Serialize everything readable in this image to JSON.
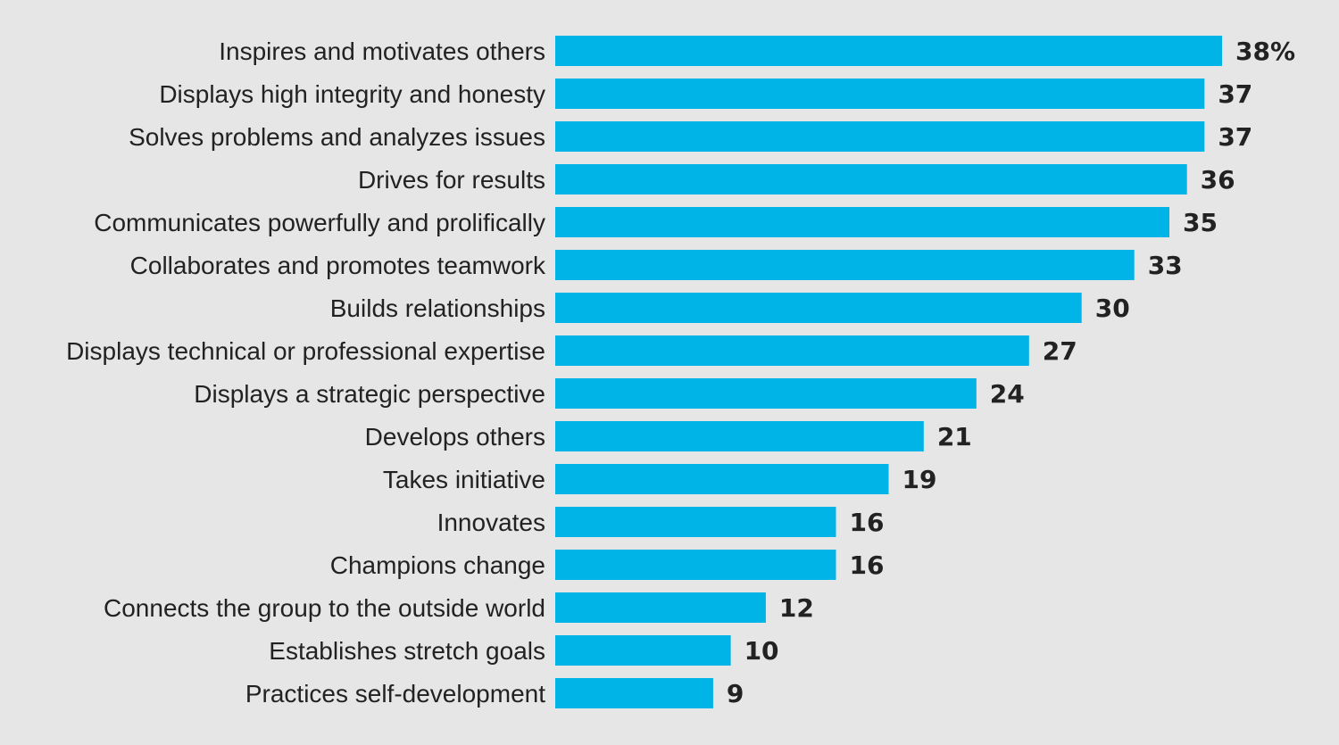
{
  "colors": {
    "background": "#e6e6e6",
    "bar": "#00b4e8",
    "text": "#222222"
  },
  "chart_data": {
    "type": "bar",
    "orientation": "horizontal",
    "title": "",
    "xlabel": "",
    "ylabel": "",
    "xlim": [
      0,
      38
    ],
    "grid": false,
    "legend": "none",
    "categories": [
      "Inspires and motivates others",
      "Displays high integrity and honesty",
      "Solves problems and analyzes issues",
      "Drives for results",
      "Communicates powerfully and prolifically",
      "Collaborates and promotes teamwork",
      "Builds relationships",
      "Displays technical or professional expertise",
      "Displays a strategic perspective",
      "Develops others",
      "Takes initiative",
      "Innovates",
      "Champions change",
      "Connects the group to the outside world",
      "Establishes stretch goals",
      "Practices self-development"
    ],
    "values": [
      38,
      37,
      37,
      36,
      35,
      33,
      30,
      27,
      24,
      21,
      19,
      16,
      16,
      12,
      10,
      9
    ],
    "value_labels": [
      "38%",
      "37",
      "37",
      "36",
      "35",
      "33",
      "30",
      "27",
      "24",
      "21",
      "19",
      "16",
      "16",
      "12",
      "10",
      "9"
    ]
  }
}
